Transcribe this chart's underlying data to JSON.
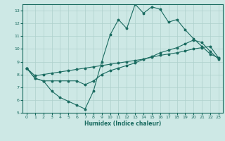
{
  "xlabel": "Humidex (Indice chaleur)",
  "xlim": [
    -0.5,
    23.5
  ],
  "ylim": [
    5,
    13.5
  ],
  "xticks": [
    0,
    1,
    2,
    3,
    4,
    5,
    6,
    7,
    8,
    9,
    10,
    11,
    12,
    13,
    14,
    15,
    16,
    17,
    18,
    19,
    20,
    21,
    22,
    23
  ],
  "yticks": [
    5,
    6,
    7,
    8,
    9,
    10,
    11,
    12,
    13
  ],
  "bg_color": "#cde8e5",
  "line_color": "#1a6b60",
  "grid_color": "#aed0cc",
  "line1_x": [
    0,
    1,
    2,
    3,
    4,
    5,
    6,
    7,
    8,
    9,
    10,
    11,
    12,
    13,
    14,
    15,
    16,
    17,
    18,
    19,
    20,
    21,
    22,
    23
  ],
  "line1_y": [
    8.5,
    7.7,
    7.5,
    6.7,
    6.2,
    5.9,
    5.6,
    5.3,
    6.7,
    9.0,
    11.1,
    12.3,
    11.6,
    13.5,
    12.8,
    13.3,
    13.1,
    12.1,
    12.3,
    11.5,
    10.8,
    10.2,
    9.6,
    9.3
  ],
  "line2_x": [
    0,
    1,
    2,
    3,
    4,
    5,
    6,
    7,
    8,
    9,
    10,
    11,
    12,
    13,
    14,
    15,
    16,
    17,
    18,
    19,
    20,
    21,
    22,
    23
  ],
  "line2_y": [
    8.5,
    7.9,
    8.0,
    8.1,
    8.2,
    8.3,
    8.4,
    8.5,
    8.6,
    8.7,
    8.8,
    8.9,
    9.0,
    9.1,
    9.2,
    9.35,
    9.5,
    9.6,
    9.7,
    9.85,
    10.0,
    10.1,
    10.2,
    9.3
  ],
  "line3_x": [
    0,
    1,
    2,
    3,
    4,
    5,
    6,
    7,
    8,
    9,
    10,
    11,
    12,
    13,
    14,
    15,
    16,
    17,
    18,
    19,
    20,
    21,
    22,
    23
  ],
  "line3_y": [
    8.5,
    7.7,
    7.5,
    7.5,
    7.5,
    7.5,
    7.5,
    7.2,
    7.5,
    8.0,
    8.3,
    8.5,
    8.7,
    8.9,
    9.2,
    9.4,
    9.7,
    9.9,
    10.1,
    10.4,
    10.7,
    10.5,
    9.8,
    9.2
  ]
}
